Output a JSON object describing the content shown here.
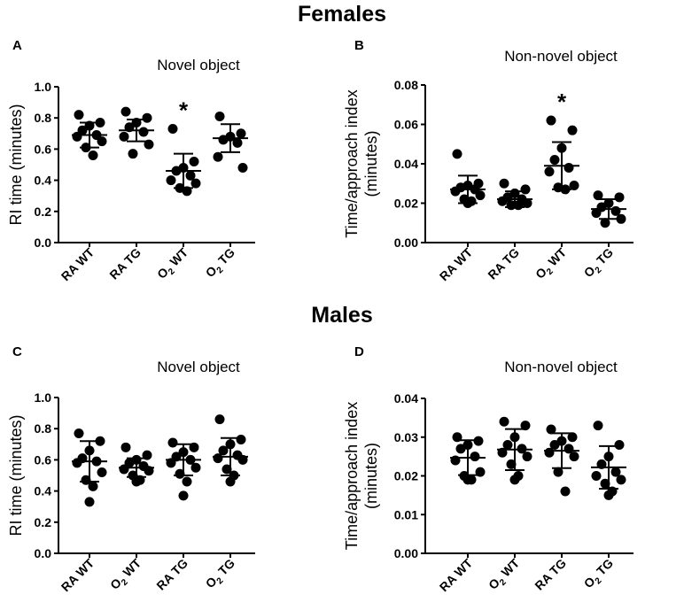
{
  "sections": {
    "female_title": "Females",
    "male_title": "Males"
  },
  "chart_data": [
    {
      "panel": "A",
      "type": "scatter",
      "title": "Novel object",
      "ylabel": "RI time (minutes)",
      "ylabel_lines": [
        "RI time (minutes)"
      ],
      "ylim": [
        0,
        1.0
      ],
      "yticks": [
        "0.0",
        "0.2",
        "0.4",
        "0.6",
        "0.8",
        "1.0"
      ],
      "categories": [
        {
          "main": "RA WT",
          "sub": ""
        },
        {
          "main": "RA TG",
          "sub": ""
        },
        {
          "main": "O",
          "sub": "2",
          "rest": " WT"
        },
        {
          "main": "O",
          "sub": "2",
          "rest": " TG"
        }
      ],
      "groups": [
        {
          "points": [
            0.82,
            0.77,
            0.75,
            0.72,
            0.69,
            0.68,
            0.65,
            0.61,
            0.56
          ],
          "mean": 0.69,
          "sd": 0.08,
          "star": false
        },
        {
          "points": [
            0.84,
            0.8,
            0.77,
            0.74,
            0.71,
            0.68,
            0.63,
            0.57
          ],
          "mean": 0.72,
          "sd": 0.07,
          "star": false
        },
        {
          "points": [
            0.73,
            0.52,
            0.48,
            0.46,
            0.43,
            0.4,
            0.38,
            0.35,
            0.33
          ],
          "mean": 0.46,
          "sd": 0.11,
          "star": true
        },
        {
          "points": [
            0.81,
            0.7,
            0.68,
            0.66,
            0.64,
            0.55,
            0.48
          ],
          "mean": 0.67,
          "sd": 0.09,
          "star": false
        }
      ],
      "star_symbol": "*"
    },
    {
      "panel": "B",
      "type": "scatter",
      "title": "Non-novel object",
      "ylabel": "Time/approach index (minutes)",
      "ylabel_lines": [
        "Time/approach index",
        "(minutes)"
      ],
      "ylim": [
        0,
        0.08
      ],
      "yticks": [
        "0.00",
        "0.02",
        "0.04",
        "0.06",
        "0.08"
      ],
      "categories": [
        {
          "main": "RA WT",
          "sub": ""
        },
        {
          "main": "RA TG",
          "sub": ""
        },
        {
          "main": "O",
          "sub": "2",
          "rest": " WT"
        },
        {
          "main": "O",
          "sub": "2",
          "rest": " TG"
        }
      ],
      "groups": [
        {
          "points": [
            0.045,
            0.03,
            0.029,
            0.028,
            0.027,
            0.026,
            0.024,
            0.022,
            0.021,
            0.02
          ],
          "mean": 0.027,
          "sd": 0.007,
          "star": false
        },
        {
          "points": [
            0.03,
            0.027,
            0.025,
            0.023,
            0.022,
            0.021,
            0.02,
            0.019,
            0.019
          ],
          "mean": 0.022,
          "sd": 0.004,
          "star": false
        },
        {
          "points": [
            0.062,
            0.057,
            0.048,
            0.042,
            0.038,
            0.036,
            0.029,
            0.028,
            0.027
          ],
          "mean": 0.039,
          "sd": 0.012,
          "star": true
        },
        {
          "points": [
            0.024,
            0.023,
            0.02,
            0.018,
            0.016,
            0.015,
            0.012,
            0.01
          ],
          "mean": 0.017,
          "sd": 0.005,
          "star": false
        }
      ],
      "star_symbol": "*"
    },
    {
      "panel": "C",
      "type": "scatter",
      "title": "Novel object",
      "ylabel": "RI time (minutes)",
      "ylabel_lines": [
        "RI time (minutes)"
      ],
      "ylim": [
        0,
        1.0
      ],
      "yticks": [
        "0.0",
        "0.2",
        "0.4",
        "0.6",
        "0.8",
        "1.0"
      ],
      "categories": [
        {
          "main": "RA WT",
          "sub": ""
        },
        {
          "main": "O",
          "sub": "2",
          "rest": " WT"
        },
        {
          "main": "RA TG",
          "sub": ""
        },
        {
          "main": "O",
          "sub": "2",
          "rest": " TG"
        }
      ],
      "groups": [
        {
          "points": [
            0.77,
            0.72,
            0.66,
            0.61,
            0.59,
            0.58,
            0.52,
            0.47,
            0.43,
            0.33
          ],
          "mean": 0.59,
          "sd": 0.13,
          "star": false
        },
        {
          "points": [
            0.68,
            0.63,
            0.6,
            0.58,
            0.56,
            0.54,
            0.53,
            0.5,
            0.47,
            0.46
          ],
          "mean": 0.55,
          "sd": 0.06,
          "star": false
        },
        {
          "points": [
            0.71,
            0.68,
            0.65,
            0.62,
            0.6,
            0.58,
            0.55,
            0.51,
            0.46,
            0.37
          ],
          "mean": 0.6,
          "sd": 0.1,
          "star": false
        },
        {
          "points": [
            0.86,
            0.73,
            0.7,
            0.66,
            0.63,
            0.61,
            0.6,
            0.54,
            0.5,
            0.46
          ],
          "mean": 0.62,
          "sd": 0.12,
          "star": false
        }
      ],
      "star_symbol": "*"
    },
    {
      "panel": "D",
      "type": "scatter",
      "title": "Non-novel object",
      "ylabel": "Time/approach index (minutes)",
      "ylabel_lines": [
        "Time/approach index",
        "(minutes)"
      ],
      "ylim": [
        0,
        0.04
      ],
      "yticks": [
        "0.00",
        "0.01",
        "0.02",
        "0.03",
        "0.04"
      ],
      "categories": [
        {
          "main": "RA WT",
          "sub": ""
        },
        {
          "main": "O",
          "sub": "2",
          "rest": " WT"
        },
        {
          "main": "RA TG",
          "sub": ""
        },
        {
          "main": "O",
          "sub": "2",
          "rest": " TG"
        }
      ],
      "groups": [
        {
          "points": [
            0.03,
            0.029,
            0.028,
            0.027,
            0.025,
            0.024,
            0.021,
            0.02,
            0.019,
            0.019
          ],
          "mean": 0.0247,
          "sd": 0.0045,
          "star": false
        },
        {
          "points": [
            0.034,
            0.033,
            0.03,
            0.028,
            0.027,
            0.026,
            0.025,
            0.023,
            0.02,
            0.019
          ],
          "mean": 0.0268,
          "sd": 0.0053,
          "star": false
        },
        {
          "points": [
            0.032,
            0.03,
            0.029,
            0.028,
            0.027,
            0.026,
            0.025,
            0.021,
            0.016
          ],
          "mean": 0.0265,
          "sd": 0.0045,
          "star": false
        },
        {
          "points": [
            0.033,
            0.028,
            0.025,
            0.023,
            0.021,
            0.02,
            0.019,
            0.018,
            0.016,
            0.015
          ],
          "mean": 0.0222,
          "sd": 0.0055,
          "star": false
        }
      ],
      "star_symbol": "*"
    }
  ]
}
